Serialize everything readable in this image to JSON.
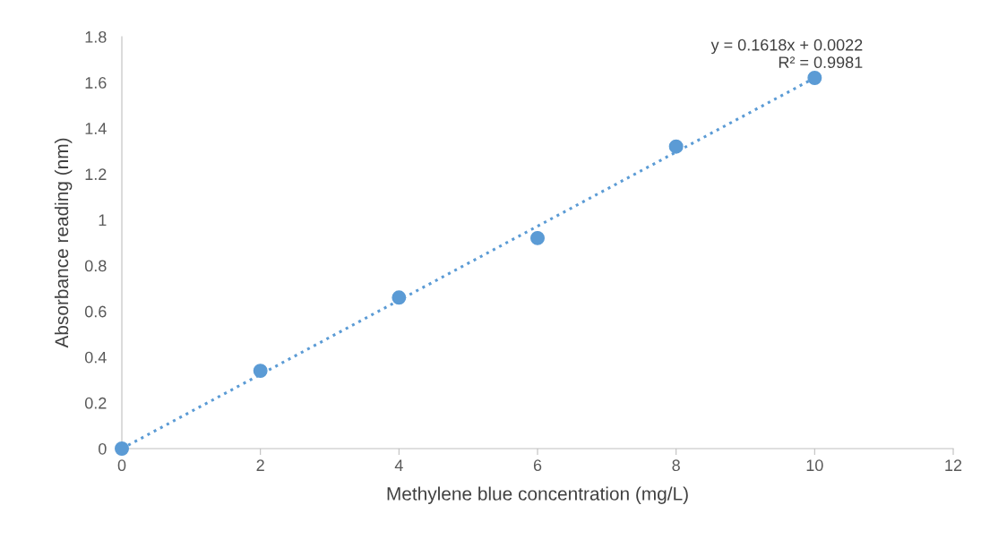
{
  "chart_data": {
    "type": "scatter",
    "xlabel": "Methylene blue concentration (mg/L)",
    "ylabel": "Absorbance reading (nm)",
    "x": [
      0,
      2,
      4,
      6,
      8,
      10
    ],
    "xlim": [
      0,
      12
    ],
    "xticks": [
      0,
      2,
      4,
      6,
      8,
      10,
      12
    ],
    "ylim": [
      0,
      1.8
    ],
    "yticks": [
      0,
      0.2,
      0.4,
      0.6,
      0.8,
      1,
      1.2,
      1.4,
      1.6,
      1.8
    ],
    "grid": false,
    "legend": false,
    "marker": "circle",
    "series": [
      {
        "color": "#5b9bd5",
        "values": [
          0,
          0.34,
          0.66,
          0.92,
          1.32,
          1.62
        ]
      },
      {
        "type": "line",
        "color": "#5b9bd5",
        "x": [
          0,
          10
        ],
        "values": [
          0,
          1.62
        ],
        "line_style": "dotted"
      }
    ],
    "annotations": [
      "y = 0.1618x + 0.0022\nR² = 0.9981"
    ]
  }
}
